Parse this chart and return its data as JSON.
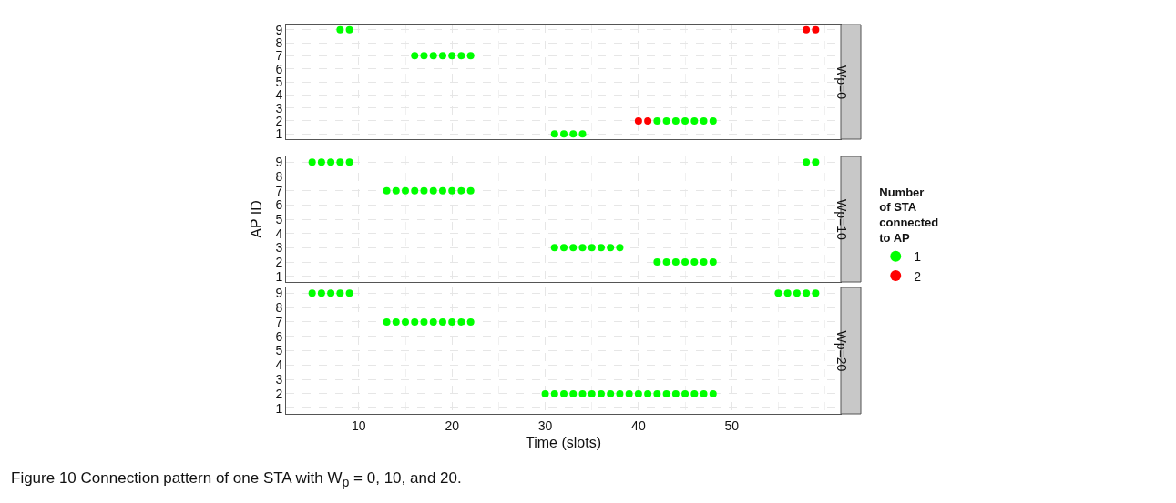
{
  "chart_data": [
    {
      "type": "scatter",
      "title": "Wp=0",
      "legend_title": "Number of STA connected to AP",
      "legend": "right",
      "marker": "circle",
      "grid": true,
      "tick_labels": "y",
      "xlim": [
        2.2,
        61.7
      ],
      "ylim": [
        0.6,
        9.4
      ],
      "xticks": [
        10,
        20,
        30,
        40,
        50
      ],
      "yticks": [
        1,
        2,
        3,
        4,
        5,
        6,
        7,
        8,
        9
      ],
      "series": [
        {
          "name": "1",
          "color": "#00ff00",
          "x": [
            8,
            9,
            16,
            17,
            18,
            19,
            20,
            21,
            22,
            31,
            32,
            33,
            34,
            42,
            43,
            44,
            45,
            46,
            47,
            48
          ],
          "values": [
            9,
            9,
            7,
            7,
            7,
            7,
            7,
            7,
            7,
            1,
            1,
            1,
            1,
            2,
            2,
            2,
            2,
            2,
            2,
            2
          ]
        },
        {
          "name": "2",
          "color": "#ff0000",
          "x": [
            40,
            41,
            58,
            59
          ],
          "values": [
            2,
            2,
            9,
            9
          ]
        }
      ]
    },
    {
      "type": "scatter",
      "title": "Wp=10",
      "ylabel": "AP ID",
      "marker": "circle",
      "grid": true,
      "tick_labels": "y",
      "xlim": [
        2.2,
        61.7
      ],
      "ylim": [
        0.6,
        9.4
      ],
      "xticks": [
        10,
        20,
        30,
        40,
        50
      ],
      "yticks": [
        1,
        2,
        3,
        4,
        5,
        6,
        7,
        8,
        9
      ],
      "series": [
        {
          "color": "#00ff00",
          "x": [
            5,
            6,
            7,
            8,
            9,
            13,
            14,
            15,
            16,
            17,
            18,
            19,
            20,
            21,
            22,
            31,
            32,
            33,
            34,
            35,
            36,
            37,
            38,
            42,
            43,
            44,
            45,
            46,
            47,
            48,
            58,
            59
          ],
          "values": [
            9,
            9,
            9,
            9,
            9,
            7,
            7,
            7,
            7,
            7,
            7,
            7,
            7,
            7,
            7,
            3,
            3,
            3,
            3,
            3,
            3,
            3,
            3,
            2,
            2,
            2,
            2,
            2,
            2,
            2,
            9,
            9
          ]
        }
      ]
    },
    {
      "type": "scatter",
      "title": "Wp=20",
      "xlabel": "Time (slots)",
      "marker": "circle",
      "grid": true,
      "xlim": [
        2.2,
        61.7
      ],
      "ylim": [
        0.6,
        9.4
      ],
      "xticks": [
        10,
        20,
        30,
        40,
        50
      ],
      "yticks": [
        1,
        2,
        3,
        4,
        5,
        6,
        7,
        8,
        9
      ],
      "annotations": [
        "Figure 10 Connection pattern of one STA with W$_{p}$ = 0, 10, and 20."
      ],
      "series": [
        {
          "color": "#00ff00",
          "x": [
            5,
            6,
            7,
            8,
            9,
            13,
            14,
            15,
            16,
            17,
            18,
            19,
            20,
            21,
            22,
            30,
            31,
            32,
            33,
            34,
            35,
            36,
            37,
            38,
            39,
            40,
            41,
            42,
            43,
            44,
            45,
            46,
            47,
            48,
            55,
            56,
            57,
            58,
            59
          ],
          "values": [
            9,
            9,
            9,
            9,
            9,
            7,
            7,
            7,
            7,
            7,
            7,
            7,
            7,
            7,
            7,
            2,
            2,
            2,
            2,
            2,
            2,
            2,
            2,
            2,
            2,
            2,
            2,
            2,
            2,
            2,
            2,
            2,
            2,
            2,
            9,
            9,
            9,
            9,
            9
          ]
        }
      ]
    }
  ]
}
